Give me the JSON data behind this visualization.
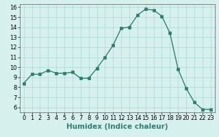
{
  "x": [
    0,
    1,
    2,
    3,
    4,
    5,
    6,
    7,
    8,
    9,
    10,
    11,
    12,
    13,
    14,
    15,
    16,
    17,
    18,
    19,
    20,
    21,
    22,
    23
  ],
  "y": [
    8.4,
    9.3,
    9.3,
    9.7,
    9.4,
    9.4,
    9.5,
    8.9,
    8.9,
    9.9,
    11.0,
    12.2,
    13.9,
    14.0,
    15.2,
    15.8,
    15.7,
    15.1,
    13.4,
    9.8,
    7.9,
    6.5,
    5.8,
    5.8
  ],
  "line_color": "#2e7d6e",
  "marker": "s",
  "marker_size": 2.2,
  "bg_color": "#d6f0ee",
  "grid_color": "#a8d8d2",
  "xlabel": "Humidex (Indice chaleur)",
  "xlim": [
    -0.5,
    23.5
  ],
  "ylim": [
    5.5,
    16.3
  ],
  "yticks": [
    6,
    7,
    8,
    9,
    10,
    11,
    12,
    13,
    14,
    15,
    16
  ],
  "xticks": [
    0,
    1,
    2,
    3,
    4,
    5,
    6,
    7,
    8,
    9,
    10,
    11,
    12,
    13,
    14,
    15,
    16,
    17,
    18,
    19,
    20,
    21,
    22,
    23
  ],
  "xlabel_fontsize": 7.5,
  "tick_fontsize": 6.0,
  "line_width": 1.0
}
